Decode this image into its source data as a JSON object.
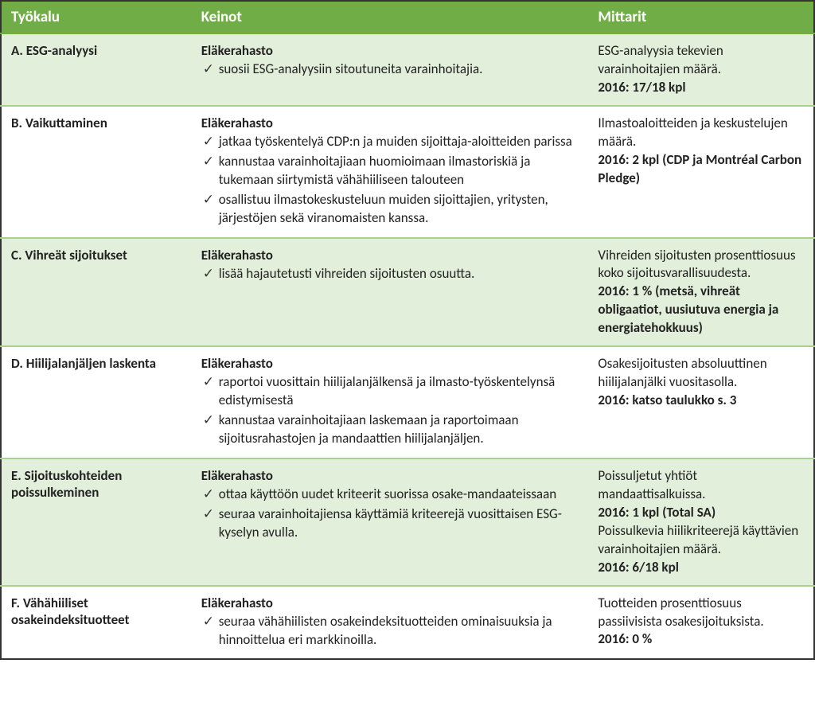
{
  "headers": {
    "tool": "Työkalu",
    "keinot": "Keinot",
    "mittarit": "Mittarit"
  },
  "rows": [
    {
      "tool": "A. ESG-analyysi",
      "subtitle": "Eläkerahasto",
      "bullets": [
        "suosii ESG-analyysiin sitoutuneita varainhoitajia."
      ],
      "mittarit_plain": "ESG-analyysia tekevien varainhoitajien määrä.",
      "mittarit_bold": "2016: 17/18 kpl",
      "alt": true
    },
    {
      "tool": "B. Vaikuttaminen",
      "subtitle": "Eläkerahasto",
      "bullets": [
        "jatkaa työskentelyä CDP:n ja muiden sijoittaja-aloitteiden parissa",
        "kannustaa varainhoitajiaan huomioimaan ilmastoriskiä ja tukemaan siirtymistä vähähiiliseen talouteen",
        "osallistuu ilmastokeskusteluun muiden sijoittajien, yritysten, järjestöjen sekä viranomaisten kanssa."
      ],
      "mittarit_plain": "Ilmastoaloitteiden ja keskustelujen määrä.",
      "mittarit_bold": "2016: 2 kpl (CDP ja Montréal Carbon Pledge)",
      "alt": false
    },
    {
      "tool": "C. Vihreät sijoitukset",
      "subtitle": "Eläkerahasto",
      "bullets": [
        "lisää hajautetusti vihreiden sijoitusten osuutta."
      ],
      "mittarit_plain": "Vihreiden sijoitusten prosenttiosuus koko sijoitusvarallisuudesta.",
      "mittarit_bold": "2016: 1 % (metsä, vihreät obligaatiot, uusiutuva energia ja energiatehokkuus)",
      "alt": true
    },
    {
      "tool": "D. Hiilijalanjäljen laskenta",
      "subtitle": "Eläkerahasto",
      "bullets": [
        "raportoi vuosittain hiilijalanjälkensä ja  ilmasto-työskentelynsä edistymisestä",
        "kannustaa varainhoitajiaan laskemaan ja raportoimaan sijoitusrahastojen ja mandaattien hiilijalanjäljen."
      ],
      "mittarit_plain": "Osakesijoitusten absoluuttinen hiilijalanjälki vuositasolla.",
      "mittarit_bold": "2016: katso taulukko s. 3",
      "alt": false
    },
    {
      "tool": "E. Sijoituskohteiden poissulkeminen",
      "subtitle": "Eläkerahasto",
      "bullets": [
        "ottaa käyttöön uudet kriteerit suorissa osake-mandaateissaan",
        "seuraa varainhoitajiensa käyttämiä kriteerejä vuosittaisen ESG-kyselyn avulla."
      ],
      "mittarit_plain": "Poissuljetut yhtiöt mandaattisalkuissa.",
      "mittarit_bold": "2016: 1 kpl (Total SA)",
      "mittarit_plain2": "Poissulkevia hiilikriteerejä käyttävien varainhoitajien määrä.",
      "mittarit_bold2": "2016: 6/18 kpl",
      "alt": true
    },
    {
      "tool": "F. Vähähiiliset osakeindeksituotteet",
      "subtitle": "Eläkerahasto",
      "bullets": [
        "seuraa vähähiilisten osakeindeksituotteiden ominaisuuksia ja hinnoittelua eri markkinoilla."
      ],
      "mittarit_plain": "Tuotteiden prosenttiosuus passiivisista osakesijoituksista.",
      "mittarit_bold": "2016: 0 %",
      "alt": false
    }
  ]
}
